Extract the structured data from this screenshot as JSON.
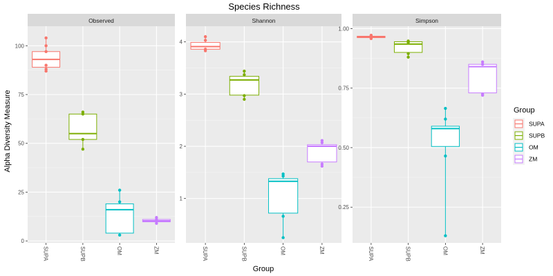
{
  "chart_data": {
    "type": "boxplot",
    "title": "Species Richness",
    "xlabel": "Group",
    "ylabel": "Alpha Diversity Measure",
    "categories": [
      "SUPA",
      "SUPB",
      "OM",
      "ZM"
    ],
    "legend": {
      "title": "Group",
      "placement": "right",
      "entries": [
        {
          "label": "SUPA",
          "color": "#F8766D"
        },
        {
          "label": "SUPB",
          "color": "#7CAE00"
        },
        {
          "label": "OM",
          "color": "#00BFC4"
        },
        {
          "label": "ZM",
          "color": "#C77CFF"
        }
      ]
    },
    "grid": true,
    "panels": [
      {
        "strip": "Observed",
        "ylim": [
          -1,
          110
        ],
        "yticks": [
          0,
          25,
          50,
          75,
          100
        ],
        "ytick_labels": [
          "0",
          "25",
          "50",
          "75",
          "100"
        ],
        "boxes": [
          {
            "group": "SUPA",
            "q1": 89,
            "median": 93,
            "q3": 97,
            "lo": 87,
            "hi": 104,
            "points": [
              87,
              88,
              90,
              97,
              100,
              104
            ]
          },
          {
            "group": "SUPB",
            "q1": 52,
            "median": 55,
            "q3": 65,
            "lo": 47,
            "hi": 66,
            "points": [
              47,
              52,
              65,
              66
            ]
          },
          {
            "group": "OM",
            "q1": 4,
            "median": 16,
            "q3": 19,
            "lo": 3,
            "hi": 26,
            "points": [
              3,
              20,
              26
            ]
          },
          {
            "group": "ZM",
            "q1": 9.8,
            "median": 10.3,
            "q3": 11,
            "lo": 9,
            "hi": 12,
            "points": [
              9,
              10,
              11,
              12
            ]
          }
        ]
      },
      {
        "strip": "Shannon",
        "ylim": [
          0.15,
          4.3
        ],
        "yticks": [
          1,
          2,
          3,
          4
        ],
        "ytick_labels": [
          "1",
          "2",
          "3",
          "4"
        ],
        "boxes": [
          {
            "group": "SUPA",
            "q1": 3.86,
            "median": 3.91,
            "q3": 3.99,
            "lo": 3.82,
            "hi": 4.1,
            "points": [
              3.83,
              3.86,
              4.03,
              4.1
            ]
          },
          {
            "group": "SUPB",
            "q1": 2.98,
            "median": 3.27,
            "q3": 3.34,
            "lo": 2.9,
            "hi": 3.44,
            "points": [
              2.9,
              2.97,
              3.37,
              3.44
            ]
          },
          {
            "group": "OM",
            "q1": 0.72,
            "median": 1.33,
            "q3": 1.38,
            "lo": 0.25,
            "hi": 1.47,
            "points": [
              0.25,
              0.66,
              1.43,
              1.47
            ]
          },
          {
            "group": "ZM",
            "q1": 1.7,
            "median": 2.0,
            "q3": 2.03,
            "lo": 1.62,
            "hi": 2.11,
            "points": [
              1.62,
              1.66,
              2.07,
              2.11
            ]
          }
        ]
      },
      {
        "strip": "Simpson",
        "ylim": [
          0.1,
          1.01
        ],
        "yticks": [
          0.25,
          0.5,
          0.75,
          1.0
        ],
        "ytick_labels": [
          "0.25",
          "0.50",
          "0.75",
          "1.00"
        ],
        "boxes": [
          {
            "group": "SUPA",
            "q1": 0.962,
            "median": 0.965,
            "q3": 0.968,
            "lo": 0.958,
            "hi": 0.972,
            "points": [
              0.958,
              0.962,
              0.968,
              0.972
            ]
          },
          {
            "group": "SUPB",
            "q1": 0.9,
            "median": 0.935,
            "q3": 0.945,
            "lo": 0.88,
            "hi": 0.948,
            "points": [
              0.88,
              0.895,
              0.942,
              0.948
            ]
          },
          {
            "group": "OM",
            "q1": 0.505,
            "median": 0.58,
            "q3": 0.59,
            "lo": 0.13,
            "hi": 0.665,
            "points": [
              0.13,
              0.465,
              0.62,
              0.665
            ]
          },
          {
            "group": "ZM",
            "q1": 0.73,
            "median": 0.84,
            "q3": 0.85,
            "lo": 0.72,
            "hi": 0.86,
            "points": [
              0.72,
              0.725,
              0.85,
              0.86
            ]
          }
        ]
      }
    ]
  }
}
